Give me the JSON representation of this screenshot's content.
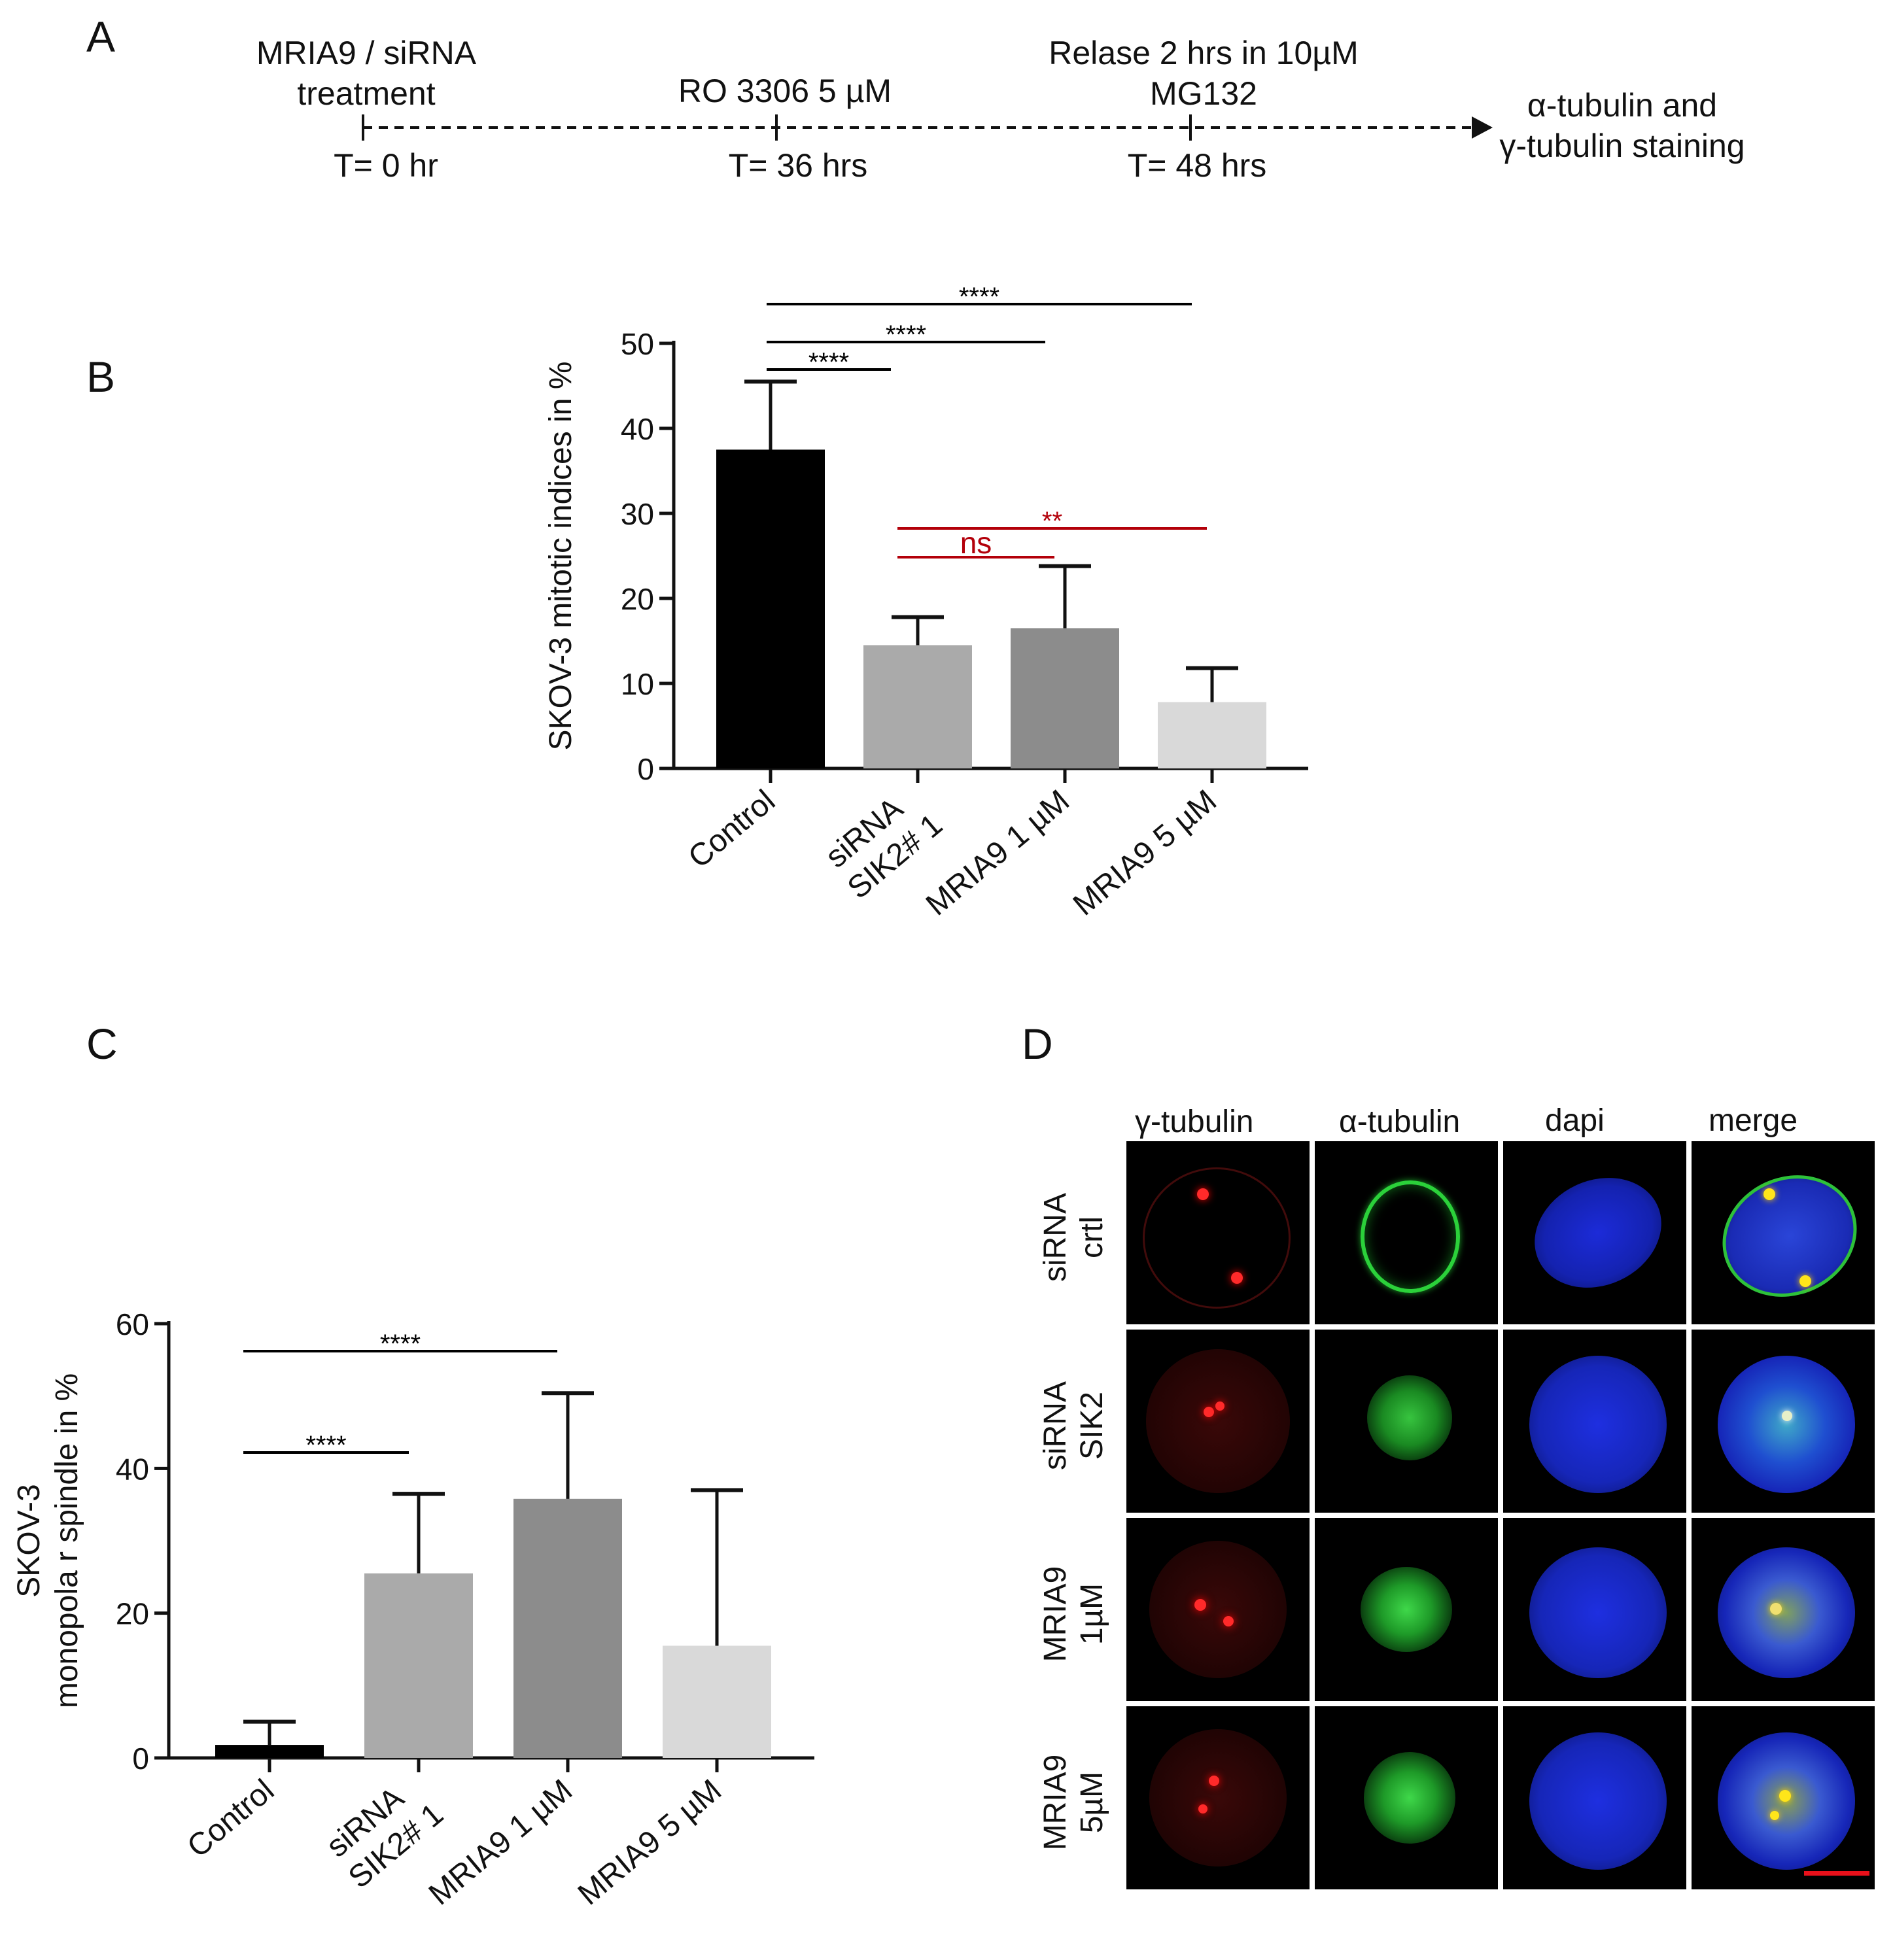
{
  "panel_A": {
    "letter": "A",
    "events": [
      {
        "top": "MRIA9 / siRNA",
        "top2": "treatment",
        "bottom": "T= 0 hr"
      },
      {
        "top": "RO 3306 5 µM",
        "top2": "",
        "bottom": "T= 36 hrs"
      },
      {
        "top": "Relase 2 hrs in 10µM",
        "top2": "MG132",
        "bottom": "T= 48 hrs"
      }
    ],
    "end_label_1": "α-tubulin and",
    "end_label_2": "γ-tubulin staining"
  },
  "chart_data": [
    {
      "panel": "B",
      "type": "bar",
      "categories": [
        "Control",
        "siRNA SIK2# 1",
        "MRIA9 1 µM",
        "MRIA9 5 µM"
      ],
      "category_lines": [
        [
          "Control"
        ],
        [
          "siRNA",
          "SIK2# 1"
        ],
        [
          "MRIA9 1 µM"
        ],
        [
          "MRIA9 5 µM"
        ]
      ],
      "values": [
        37.5,
        14.5,
        16.5,
        7.8
      ],
      "errors": [
        8,
        3.3,
        7.3,
        4
      ],
      "bar_colors": [
        "#000000",
        "#aaaaaa",
        "#8c8c8c",
        "#d9d9d9"
      ],
      "ylabel": "SKOV-3 mitotic indices in %",
      "ylim": [
        0,
        50
      ],
      "yticks": [
        0,
        10,
        20,
        30,
        40,
        50
      ],
      "significance": [
        {
          "from": 0,
          "to": 1,
          "label": "****",
          "color": "#000000"
        },
        {
          "from": 0,
          "to": 2,
          "label": "****",
          "color": "#000000"
        },
        {
          "from": 0,
          "to": 3,
          "label": "****",
          "color": "#000000"
        },
        {
          "from": 1,
          "to": 2,
          "label": "ns",
          "color": "#b3000a"
        },
        {
          "from": 1,
          "to": 3,
          "label": "**",
          "color": "#b3000a"
        }
      ]
    },
    {
      "panel": "C",
      "type": "bar",
      "categories": [
        "Control",
        "siRNA SIK2# 1",
        "MRIA9 1 µM",
        "MRIA9 5 µM"
      ],
      "category_lines": [
        [
          "Control"
        ],
        [
          "siRNA",
          "SIK2# 1"
        ],
        [
          "MRIA9 1 µM"
        ],
        [
          "MRIA9 5 µM"
        ]
      ],
      "values": [
        1.8,
        25.5,
        35.8,
        15.5
      ],
      "errors": [
        3.2,
        11,
        14.6,
        21.5
      ],
      "bar_colors": [
        "#000000",
        "#aaaaaa",
        "#8c8c8c",
        "#d9d9d9"
      ],
      "ylabel": "SKOV-3",
      "ylabel2": "monopola r spindle in %",
      "ylim": [
        0,
        60
      ],
      "yticks": [
        0,
        20,
        40,
        60
      ],
      "significance": [
        {
          "from": 0,
          "to": 1,
          "label": "****",
          "color": "#000000"
        },
        {
          "from": 0,
          "to": 2,
          "label": "****",
          "color": "#000000"
        }
      ]
    }
  ],
  "panel_labels": {
    "B": "B",
    "C": "C",
    "D": "D"
  },
  "panel_D": {
    "columns": [
      "γ-tubulin",
      "α-tubulin",
      "dapi",
      "merge"
    ],
    "rows": [
      {
        "line1": "siRNA",
        "line2": "crtl"
      },
      {
        "line1": "siRNA",
        "line2": "SIK2"
      },
      {
        "line1": "MRIA9",
        "line2": "1µM"
      },
      {
        "line1": "MRIA9",
        "line2": "5µM"
      }
    ],
    "scale_bar_color": "#e8101a"
  }
}
